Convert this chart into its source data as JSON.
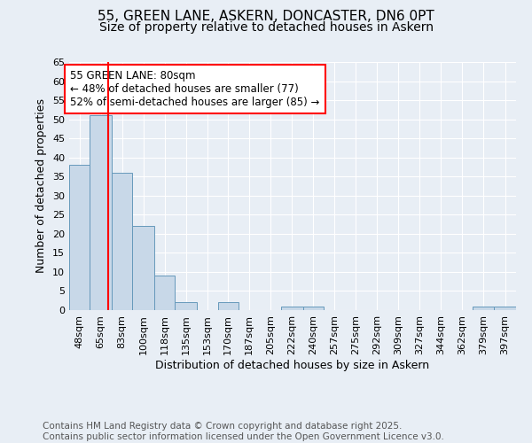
{
  "title_line1": "55, GREEN LANE, ASKERN, DONCASTER, DN6 0PT",
  "title_line2": "Size of property relative to detached houses in Askern",
  "xlabel": "Distribution of detached houses by size in Askern",
  "ylabel": "Number of detached properties",
  "bin_labels": [
    "48sqm",
    "65sqm",
    "83sqm",
    "100sqm",
    "118sqm",
    "135sqm",
    "153sqm",
    "170sqm",
    "187sqm",
    "205sqm",
    "222sqm",
    "240sqm",
    "257sqm",
    "275sqm",
    "292sqm",
    "309sqm",
    "327sqm",
    "344sqm",
    "362sqm",
    "379sqm",
    "397sqm"
  ],
  "bin_edges": [
    48,
    65,
    83,
    100,
    118,
    135,
    153,
    170,
    187,
    205,
    222,
    240,
    257,
    275,
    292,
    309,
    327,
    344,
    362,
    379,
    397
  ],
  "heights": [
    38,
    51,
    36,
    22,
    9,
    2,
    0,
    2,
    0,
    0,
    1,
    1,
    0,
    0,
    0,
    0,
    0,
    0,
    0,
    1,
    1
  ],
  "bar_color": "#c8d8e8",
  "bar_edgecolor": "#6699bb",
  "vline_x": 80,
  "vline_color": "red",
  "annotation_text": "55 GREEN LANE: 80sqm\n← 48% of detached houses are smaller (77)\n52% of semi-detached houses are larger (85) →",
  "annotation_box_edgecolor": "red",
  "annotation_box_facecolor": "white",
  "ylim": [
    0,
    65
  ],
  "yticks": [
    0,
    5,
    10,
    15,
    20,
    25,
    30,
    35,
    40,
    45,
    50,
    55,
    60,
    65
  ],
  "bg_color": "#e8eef5",
  "plot_bg_color": "#e8eef5",
  "footer_text": "Contains HM Land Registry data © Crown copyright and database right 2025.\nContains public sector information licensed under the Open Government Licence v3.0.",
  "title_fontsize": 11,
  "subtitle_fontsize": 10,
  "axis_label_fontsize": 9,
  "tick_fontsize": 8,
  "footer_fontsize": 7.5,
  "annot_fontsize": 8.5
}
